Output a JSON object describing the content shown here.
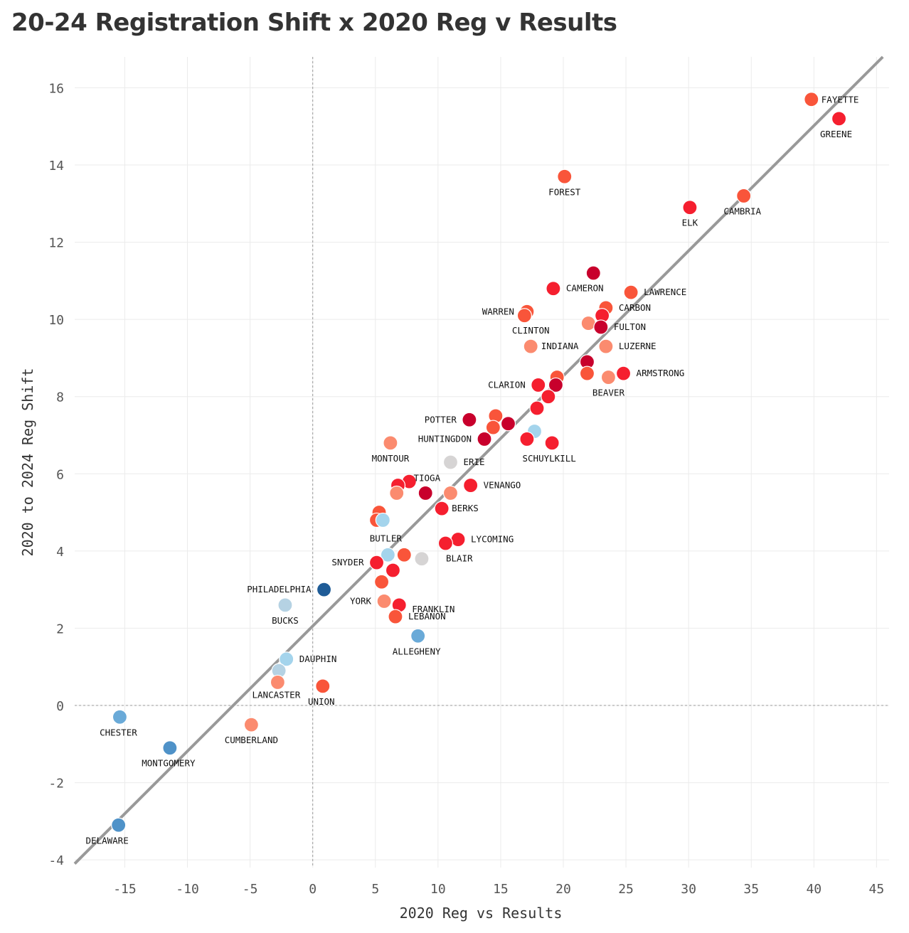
{
  "title": "20-24 Registration Shift x 2020 Reg v Results",
  "chart_data": {
    "type": "scatter",
    "title": "20-24 Registration Shift x 2020 Reg v Results",
    "xlabel": "2020 Reg vs Results",
    "ylabel": "2020 to 2024 Reg Shift",
    "xlim": [
      -19,
      46
    ],
    "ylim": [
      -4.2,
      16.8
    ],
    "xticks": [
      -15,
      -10,
      -5,
      0,
      5,
      10,
      15,
      20,
      25,
      30,
      35,
      40,
      45
    ],
    "yticks": [
      -4,
      -2,
      0,
      2,
      4,
      6,
      8,
      10,
      12,
      14,
      16
    ],
    "grid": true,
    "trendline": {
      "x1": -19,
      "y1": -4.1,
      "x2": 45.5,
      "y2": 16.8
    },
    "colors": {
      "dark_red": "#c8002c",
      "red": "#f51f2f",
      "orange_red": "#f9553a",
      "salmon": "#fb8b6f",
      "grey": "#d6d4d4",
      "light_blue": "#a4d4ec",
      "pale_blue": "#b5d2e3",
      "blue": "#6aaad8",
      "mid_blue": "#4f92c8",
      "dark_blue": "#1f5c97"
    },
    "points": [
      {
        "name": "FAYETTE",
        "x": 39.8,
        "y": 15.7,
        "color": "orange_red"
      },
      {
        "name": "GREENE",
        "x": 42.0,
        "y": 15.2,
        "color": "red"
      },
      {
        "name": "FOREST",
        "x": 20.1,
        "y": 13.7,
        "color": "orange_red"
      },
      {
        "name": "CAMBRIA",
        "x": 34.4,
        "y": 13.2,
        "color": "orange_red"
      },
      {
        "name": "ELK",
        "x": 30.1,
        "y": 12.9,
        "color": "red"
      },
      {
        "name": "",
        "x": 22.4,
        "y": 11.2,
        "color": "dark_red"
      },
      {
        "name": "CAMERON",
        "x": 19.2,
        "y": 10.8,
        "color": "red"
      },
      {
        "name": "LAWRENCE",
        "x": 25.4,
        "y": 10.7,
        "color": "orange_red"
      },
      {
        "name": "CARBON",
        "x": 23.4,
        "y": 10.3,
        "color": "orange_red"
      },
      {
        "name": "WARREN",
        "x": 17.1,
        "y": 10.2,
        "color": "orange_red"
      },
      {
        "name": "",
        "x": 16.9,
        "y": 10.1,
        "color": "orange_red"
      },
      {
        "name": "",
        "x": 23.1,
        "y": 10.1,
        "color": "red"
      },
      {
        "name": "",
        "x": 22.0,
        "y": 9.9,
        "color": "salmon"
      },
      {
        "name": "FULTON",
        "x": 23.0,
        "y": 9.8,
        "color": "dark_red"
      },
      {
        "name": "CLINTON",
        "x": 17.4,
        "y": 9.3,
        "color": "salmon"
      },
      {
        "name": "LUZERNE",
        "x": 23.4,
        "y": 9.3,
        "color": "salmon"
      },
      {
        "name": "INDIANA",
        "x": 21.9,
        "y": 8.9,
        "color": "dark_red"
      },
      {
        "name": "",
        "x": 21.9,
        "y": 8.6,
        "color": "orange_red"
      },
      {
        "name": "ARMSTRONG",
        "x": 24.8,
        "y": 8.6,
        "color": "red"
      },
      {
        "name": "BEAVER",
        "x": 23.6,
        "y": 8.5,
        "color": "salmon"
      },
      {
        "name": "",
        "x": 19.5,
        "y": 8.5,
        "color": "orange_red"
      },
      {
        "name": "CLARION",
        "x": 18.0,
        "y": 8.3,
        "color": "red"
      },
      {
        "name": "",
        "x": 19.4,
        "y": 8.3,
        "color": "dark_red"
      },
      {
        "name": "",
        "x": 18.8,
        "y": 8.0,
        "color": "red"
      },
      {
        "name": "",
        "x": 17.9,
        "y": 7.7,
        "color": "red"
      },
      {
        "name": "",
        "x": 14.6,
        "y": 7.5,
        "color": "orange_red"
      },
      {
        "name": "POTTER",
        "x": 12.5,
        "y": 7.4,
        "color": "dark_red"
      },
      {
        "name": "",
        "x": 15.6,
        "y": 7.3,
        "color": "dark_red"
      },
      {
        "name": "",
        "x": 14.4,
        "y": 7.2,
        "color": "orange_red"
      },
      {
        "name": "",
        "x": 17.7,
        "y": 7.1,
        "color": "light_blue"
      },
      {
        "name": "HUNTINGDON",
        "x": 13.7,
        "y": 6.9,
        "color": "dark_red"
      },
      {
        "name": "",
        "x": 17.1,
        "y": 6.9,
        "color": "red"
      },
      {
        "name": "MONTOUR",
        "x": 6.2,
        "y": 6.8,
        "color": "salmon"
      },
      {
        "name": "SCHUYLKILL",
        "x": 19.1,
        "y": 6.8,
        "color": "red"
      },
      {
        "name": "ERIE",
        "x": 11.0,
        "y": 6.3,
        "color": "grey"
      },
      {
        "name": "",
        "x": 7.7,
        "y": 5.8,
        "color": "red"
      },
      {
        "name": "TIOGA",
        "x": 6.8,
        "y": 5.7,
        "color": "red"
      },
      {
        "name": "VENANGO",
        "x": 12.6,
        "y": 5.7,
        "color": "red"
      },
      {
        "name": "",
        "x": 6.7,
        "y": 5.5,
        "color": "salmon"
      },
      {
        "name": "",
        "x": 9.0,
        "y": 5.5,
        "color": "dark_red"
      },
      {
        "name": "",
        "x": 11.0,
        "y": 5.5,
        "color": "salmon"
      },
      {
        "name": "BERKS",
        "x": 10.3,
        "y": 5.1,
        "color": "red"
      },
      {
        "name": "",
        "x": 5.3,
        "y": 5.0,
        "color": "orange_red"
      },
      {
        "name": "",
        "x": 5.1,
        "y": 4.8,
        "color": "orange_red"
      },
      {
        "name": "BUTLER",
        "x": 5.6,
        "y": 4.8,
        "color": "light_blue"
      },
      {
        "name": "LYCOMING",
        "x": 11.6,
        "y": 4.3,
        "color": "red"
      },
      {
        "name": "",
        "x": 10.6,
        "y": 4.2,
        "color": "red"
      },
      {
        "name": "",
        "x": 7.3,
        "y": 3.9,
        "color": "orange_red"
      },
      {
        "name": "",
        "x": 6.0,
        "y": 3.9,
        "color": "light_blue"
      },
      {
        "name": "BLAIR",
        "x": 8.7,
        "y": 3.8,
        "color": "grey"
      },
      {
        "name": "SNYDER",
        "x": 5.1,
        "y": 3.7,
        "color": "red"
      },
      {
        "name": "",
        "x": 6.4,
        "y": 3.5,
        "color": "red"
      },
      {
        "name": "",
        "x": 5.5,
        "y": 3.2,
        "color": "orange_red"
      },
      {
        "name": "PHILADELPHIA",
        "x": 0.9,
        "y": 3.0,
        "color": "dark_blue"
      },
      {
        "name": "YORK",
        "x": 5.7,
        "y": 2.7,
        "color": "salmon"
      },
      {
        "name": "FRANKLIN",
        "x": 6.9,
        "y": 2.6,
        "color": "red"
      },
      {
        "name": "BUCKS",
        "x": -2.2,
        "y": 2.6,
        "color": "pale_blue"
      },
      {
        "name": "LEBANON",
        "x": 6.6,
        "y": 2.3,
        "color": "orange_red"
      },
      {
        "name": "ALLEGHENY",
        "x": 8.4,
        "y": 1.8,
        "color": "blue"
      },
      {
        "name": "DAUPHIN",
        "x": -2.1,
        "y": 1.2,
        "color": "light_blue"
      },
      {
        "name": "",
        "x": -2.7,
        "y": 0.9,
        "color": "pale_blue"
      },
      {
        "name": "LANCASTER",
        "x": -2.8,
        "y": 0.6,
        "color": "salmon"
      },
      {
        "name": "UNION",
        "x": 0.8,
        "y": 0.5,
        "color": "orange_red"
      },
      {
        "name": "CHESTER",
        "x": -15.4,
        "y": -0.3,
        "color": "blue"
      },
      {
        "name": "CUMBERLAND",
        "x": -4.9,
        "y": -0.5,
        "color": "salmon"
      },
      {
        "name": "MONTGOMERY",
        "x": -11.4,
        "y": -1.1,
        "color": "mid_blue"
      },
      {
        "name": "DELAWARE",
        "x": -15.5,
        "y": -3.1,
        "color": "mid_blue"
      }
    ]
  }
}
